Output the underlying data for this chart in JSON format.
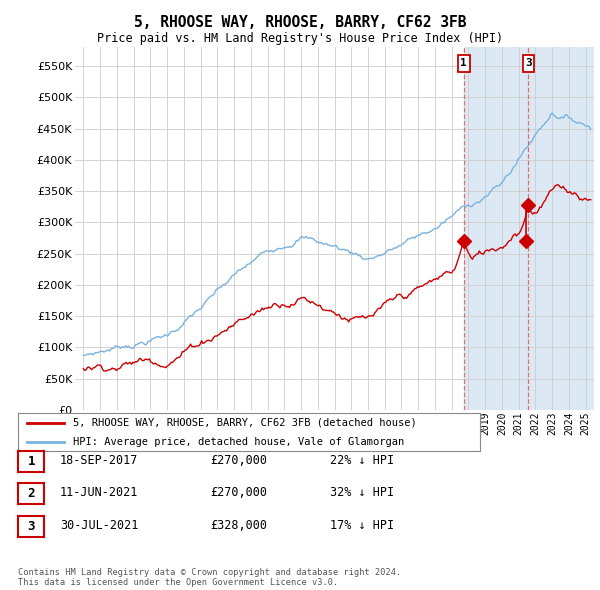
{
  "title": "5, RHOOSE WAY, RHOOSE, BARRY, CF62 3FB",
  "subtitle": "Price paid vs. HM Land Registry's House Price Index (HPI)",
  "ytick_values": [
    0,
    50000,
    100000,
    150000,
    200000,
    250000,
    300000,
    350000,
    400000,
    450000,
    500000,
    550000
  ],
  "ylim": [
    0,
    580000
  ],
  "xlim_start": 1994.5,
  "xlim_end": 2025.5,
  "hpi_color": "#7ab3e0",
  "price_color": "#cc0000",
  "dashed_line_color": "#e06060",
  "shaded_color": "#dce9f5",
  "background_color": "#ffffff",
  "grid_color": "#cccccc",
  "legend_label_price": "5, RHOOSE WAY, RHOOSE, BARRY, CF62 3FB (detached house)",
  "legend_label_hpi": "HPI: Average price, detached house, Vale of Glamorgan",
  "transactions": [
    {
      "date_label": "18-SEP-2017",
      "date_x": 2017.72,
      "price": 270000,
      "hpi_pct": "22%",
      "label": "1",
      "show_top_label": true
    },
    {
      "date_label": "11-JUN-2021",
      "date_x": 2021.44,
      "price": 270000,
      "hpi_pct": "32%",
      "label": "2",
      "show_top_label": false
    },
    {
      "date_label": "30-JUL-2021",
      "date_x": 2021.58,
      "price": 328000,
      "hpi_pct": "17%",
      "label": "3",
      "show_top_label": true
    }
  ],
  "footer_line1": "Contains HM Land Registry data © Crown copyright and database right 2024.",
  "footer_line2": "This data is licensed under the Open Government Licence v3.0.",
  "table_rows": [
    [
      "1",
      "18-SEP-2017",
      "£270,000",
      "22% ↓ HPI"
    ],
    [
      "2",
      "11-JUN-2021",
      "£270,000",
      "32% ↓ HPI"
    ],
    [
      "3",
      "30-JUL-2021",
      "£328,000",
      "17% ↓ HPI"
    ]
  ]
}
